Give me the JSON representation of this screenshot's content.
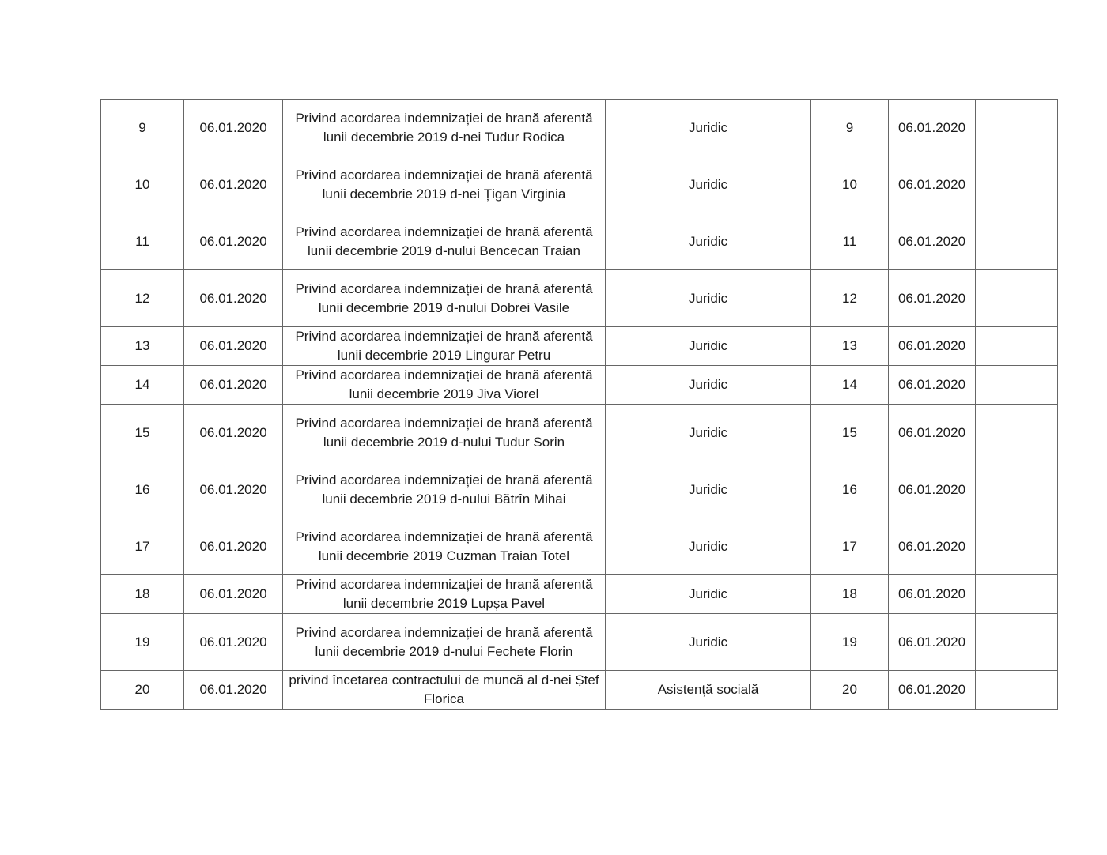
{
  "page": {
    "background_color": "#ffffff",
    "text_color": "#1b1b1b",
    "table_border_color": "#666666"
  },
  "table": {
    "rows": [
      {
        "nr": "9",
        "date": "06.01.2020",
        "description": "Privind acordarea indemnizației de hrană aferentă lunii decembrie 2019 d-nei Tudur Rodica",
        "department": "Juridic",
        "reg_nr": "9",
        "reg_date": "06.01.2020",
        "note": ""
      },
      {
        "nr": "10",
        "date": "06.01.2020",
        "description": "Privind acordarea indemnizației de hrană aferentă lunii decembrie 2019 d-nei Țigan Virginia",
        "department": "Juridic",
        "reg_nr": "10",
        "reg_date": "06.01.2020",
        "note": ""
      },
      {
        "nr": "11",
        "date": "06.01.2020",
        "description": "Privind acordarea indemnizației de hrană aferentă lunii decembrie 2019 d-nului Bencecan Traian",
        "department": "Juridic",
        "reg_nr": "11",
        "reg_date": "06.01.2020",
        "note": ""
      },
      {
        "nr": "12",
        "date": "06.01.2020",
        "description": "Privind acordarea indemnizației de hrană aferentă lunii decembrie 2019 d-nului Dobrei Vasile",
        "department": "Juridic",
        "reg_nr": "12",
        "reg_date": "06.01.2020",
        "note": ""
      },
      {
        "nr": "13",
        "date": "06.01.2020",
        "description": "Privind acordarea indemnizației de hrană aferentă lunii decembrie 2019 Lingurar Petru",
        "department": "Juridic",
        "reg_nr": "13",
        "reg_date": "06.01.2020",
        "note": ""
      },
      {
        "nr": "14",
        "date": "06.01.2020",
        "description": "Privind acordarea indemnizației de hrană aferentă lunii decembrie 2019 Jiva Viorel",
        "department": "Juridic",
        "reg_nr": "14",
        "reg_date": "06.01.2020",
        "note": ""
      },
      {
        "nr": "15",
        "date": "06.01.2020",
        "description": "Privind acordarea indemnizației de hrană aferentă lunii decembrie 2019 d-nului Tudur Sorin",
        "department": "Juridic",
        "reg_nr": "15",
        "reg_date": "06.01.2020",
        "note": ""
      },
      {
        "nr": "16",
        "date": "06.01.2020",
        "description": "Privind acordarea indemnizației de hrană aferentă lunii decembrie 2019 d-nului Bătrîn Mihai",
        "department": "Juridic",
        "reg_nr": "16",
        "reg_date": "06.01.2020",
        "note": ""
      },
      {
        "nr": "17",
        "date": "06.01.2020",
        "description": "Privind acordarea indemnizației de hrană aferentă lunii decembrie 2019 Cuzman Traian Totel",
        "department": "Juridic",
        "reg_nr": "17",
        "reg_date": "06.01.2020",
        "note": ""
      },
      {
        "nr": "18",
        "date": "06.01.2020",
        "description": "Privind acordarea indemnizației de hrană aferentă lunii decembrie 2019 Lupșa Pavel",
        "department": "Juridic",
        "reg_nr": "18",
        "reg_date": "06.01.2020",
        "note": ""
      },
      {
        "nr": "19",
        "date": "06.01.2020",
        "description": "Privind acordarea indemnizației de hrană aferentă lunii decembrie 2019 d-nului Fechete Florin",
        "department": "Juridic",
        "reg_nr": "19",
        "reg_date": "06.01.2020",
        "note": ""
      },
      {
        "nr": "20",
        "date": "06.01.2020",
        "description": "privind încetarea contractului de muncă al d-nei Ștef Florica",
        "department": "Asistență socială",
        "reg_nr": "20",
        "reg_date": "06.01.2020",
        "note": ""
      }
    ]
  }
}
